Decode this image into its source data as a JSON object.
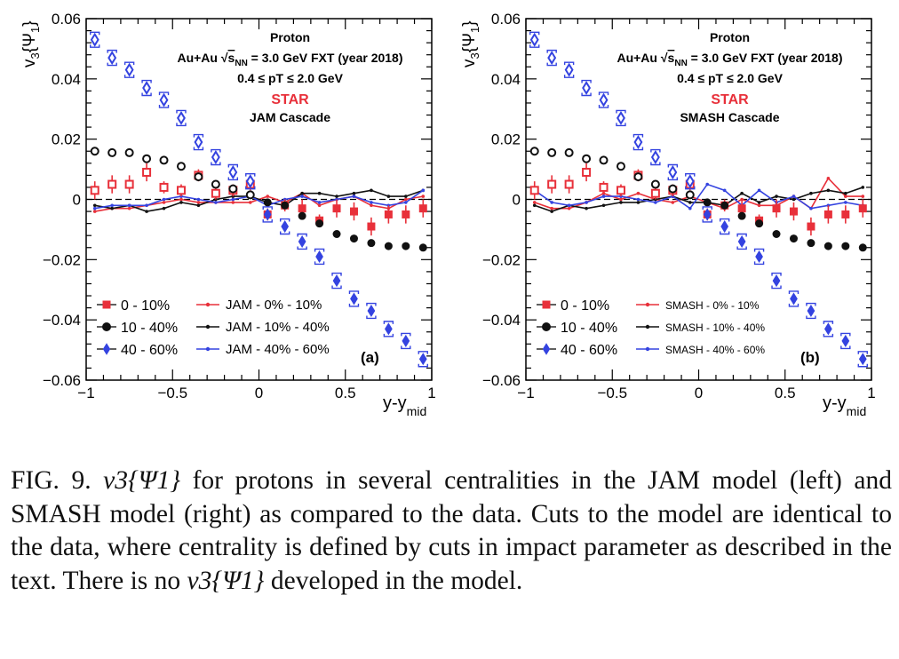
{
  "panels": [
    {
      "chart_data": {
        "type": "scatter",
        "panel_label": "(a)",
        "ylabel": "v3{Ψ1}",
        "xlabel": "y-ymid",
        "xlim": [
          -1,
          1
        ],
        "ylim": [
          -0.06,
          0.06
        ],
        "x_ticks": [
          "−1",
          "−0.5",
          "0",
          "0.5",
          "1"
        ],
        "y_ticks": [
          "−0.06",
          "−0.04",
          "−0.02",
          "0",
          "0.02",
          "0.04",
          "0.06"
        ],
        "annotations": {
          "particle": "Proton",
          "system_prefix": "Au+Au",
          "energy": "= 3.0 GeV FXT (year 2018)",
          "pt_range": "0.4 ≤ pT ≤ 2.0 GeV",
          "experiment": "STAR",
          "model": "JAM Cascade"
        },
        "legend_placement": "bottom",
        "x": [
          -0.95,
          -0.85,
          -0.75,
          -0.65,
          -0.55,
          -0.45,
          -0.35,
          -0.25,
          -0.15,
          -0.05,
          0.05,
          0.15,
          0.25,
          0.35,
          0.45,
          0.55,
          0.65,
          0.75,
          0.85,
          0.95
        ],
        "data_series": [
          {
            "name": "0 - 10%",
            "color": "#e8303a",
            "marker": "square",
            "values": [
              0.003,
              0.005,
              0.005,
              0.009,
              0.004,
              0.003,
              0.008,
              0.002,
              0.003,
              0.005,
              -0.005,
              -0.002,
              -0.003,
              -0.007,
              -0.003,
              -0.004,
              -0.009,
              -0.005,
              -0.005,
              -0.003
            ],
            "errors": [
              0.003,
              0.003,
              0.003,
              0.003,
              0.002,
              0.002,
              0.002,
              0.002,
              0.002,
              0.002,
              0.002,
              0.002,
              0.003,
              0.002,
              0.003,
              0.003,
              0.003,
              0.003,
              0.003,
              0.003
            ]
          },
          {
            "name": "10 - 40%",
            "color": "#111111",
            "marker": "circle",
            "values": [
              0.016,
              0.0155,
              0.0155,
              0.0135,
              0.013,
              0.011,
              0.0075,
              0.005,
              0.0035,
              0.0015,
              -0.001,
              -0.002,
              -0.0055,
              -0.008,
              -0.0115,
              -0.013,
              -0.0145,
              -0.0155,
              -0.0155,
              -0.016
            ],
            "errors": [
              0.0005,
              0.0005,
              0.0005,
              0.0005,
              0.0005,
              0.0005,
              0.0005,
              0.0005,
              0.0005,
              0.0005,
              0.0005,
              0.0005,
              0.0005,
              0.0005,
              0.0005,
              0.0005,
              0.0005,
              0.0005,
              0.0005,
              0.0005
            ]
          },
          {
            "name": "40 - 60%",
            "color": "#3443e0",
            "marker": "diamond",
            "values": [
              0.053,
              0.047,
              0.043,
              0.037,
              0.033,
              0.027,
              0.019,
              0.014,
              0.009,
              0.006,
              -0.005,
              -0.009,
              -0.014,
              -0.019,
              -0.027,
              -0.033,
              -0.037,
              -0.043,
              -0.047,
              -0.053
            ],
            "errors": [
              0.0015,
              0.0015,
              0.0015,
              0.0015,
              0.0015,
              0.0015,
              0.0015,
              0.0015,
              0.0015,
              0.0015,
              0.0015,
              0.0015,
              0.0015,
              0.0015,
              0.0015,
              0.0015,
              0.0015,
              0.0015,
              0.0015,
              0.0015
            ]
          }
        ],
        "model_series": [
          {
            "name": "JAM - 0% - 10%",
            "color": "#e8303a",
            "values": [
              -0.004,
              -0.003,
              -0.003,
              -0.002,
              -0.001,
              0.0,
              -0.001,
              -0.001,
              -0.001,
              -0.001,
              0.001,
              -0.001,
              0.002,
              -0.002,
              0.0,
              0.001,
              -0.002,
              -0.003,
              0.0,
              0.001
            ]
          },
          {
            "name": "JAM - 10% - 40%",
            "color": "#111111",
            "values": [
              -0.002,
              -0.003,
              -0.002,
              -0.004,
              -0.003,
              -0.001,
              -0.002,
              0.0,
              0.001,
              0.001,
              -0.001,
              -0.002,
              0.002,
              0.002,
              0.001,
              0.002,
              0.003,
              0.001,
              0.001,
              0.003
            ]
          },
          {
            "name": "JAM - 40% - 60%",
            "color": "#3443e0",
            "values": [
              -0.003,
              -0.002,
              -0.002,
              -0.002,
              0.0,
              0.001,
              0.0,
              -0.001,
              0.0,
              0.001,
              -0.002,
              0.0,
              0.001,
              -0.001,
              0.0,
              0.001,
              -0.001,
              -0.002,
              -0.001,
              0.003
            ]
          }
        ]
      }
    },
    {
      "chart_data": {
        "type": "scatter",
        "panel_label": "(b)",
        "ylabel": "v3{Ψ1}",
        "xlabel": "y-ymid",
        "xlim": [
          -1,
          1
        ],
        "ylim": [
          -0.06,
          0.06
        ],
        "x_ticks": [
          "−1",
          "−0.5",
          "0",
          "0.5",
          "1"
        ],
        "y_ticks": [
          "−0.06",
          "−0.04",
          "−0.02",
          "0",
          "0.02",
          "0.04",
          "0.06"
        ],
        "annotations": {
          "particle": "Proton",
          "system_prefix": "Au+Au",
          "energy": "= 3.0 GeV FXT (year 2018)",
          "pt_range": "0.4 ≤ pT ≤ 2.0 GeV",
          "experiment": "STAR",
          "model": "SMASH Cascade"
        },
        "legend_placement": "bottom",
        "x": [
          -0.95,
          -0.85,
          -0.75,
          -0.65,
          -0.55,
          -0.45,
          -0.35,
          -0.25,
          -0.15,
          -0.05,
          0.05,
          0.15,
          0.25,
          0.35,
          0.45,
          0.55,
          0.65,
          0.75,
          0.85,
          0.95
        ],
        "data_series": [
          {
            "name": "0 - 10%",
            "color": "#e8303a",
            "marker": "square",
            "values": [
              0.003,
              0.005,
              0.005,
              0.009,
              0.004,
              0.003,
              0.008,
              0.002,
              0.003,
              0.005,
              -0.005,
              -0.002,
              -0.003,
              -0.007,
              -0.003,
              -0.004,
              -0.009,
              -0.005,
              -0.005,
              -0.003
            ],
            "errors": [
              0.003,
              0.003,
              0.003,
              0.003,
              0.002,
              0.002,
              0.002,
              0.002,
              0.002,
              0.002,
              0.002,
              0.002,
              0.003,
              0.002,
              0.003,
              0.003,
              0.003,
              0.003,
              0.003,
              0.003
            ]
          },
          {
            "name": "10 - 40%",
            "color": "#111111",
            "marker": "circle",
            "values": [
              0.016,
              0.0155,
              0.0155,
              0.0135,
              0.013,
              0.011,
              0.0075,
              0.005,
              0.0035,
              0.0015,
              -0.001,
              -0.002,
              -0.0055,
              -0.008,
              -0.0115,
              -0.013,
              -0.0145,
              -0.0155,
              -0.0155,
              -0.016
            ],
            "errors": [
              0.0005,
              0.0005,
              0.0005,
              0.0005,
              0.0005,
              0.0005,
              0.0005,
              0.0005,
              0.0005,
              0.0005,
              0.0005,
              0.0005,
              0.0005,
              0.0005,
              0.0005,
              0.0005,
              0.0005,
              0.0005,
              0.0005,
              0.0005
            ]
          },
          {
            "name": "40 - 60%",
            "color": "#3443e0",
            "marker": "diamond",
            "values": [
              0.053,
              0.047,
              0.043,
              0.037,
              0.033,
              0.027,
              0.019,
              0.014,
              0.009,
              0.006,
              -0.005,
              -0.009,
              -0.014,
              -0.019,
              -0.027,
              -0.033,
              -0.037,
              -0.043,
              -0.047,
              -0.053
            ],
            "errors": [
              0.0015,
              0.0015,
              0.0015,
              0.0015,
              0.0015,
              0.0015,
              0.0015,
              0.0015,
              0.0015,
              0.0015,
              0.0015,
              0.0015,
              0.0015,
              0.0015,
              0.0015,
              0.0015,
              0.0015,
              0.0015,
              0.0015,
              0.0015
            ]
          }
        ],
        "model_series": [
          {
            "name": "SMASH - 0% - 10%",
            "color": "#e8303a",
            "values": [
              -0.001,
              -0.003,
              -0.003,
              -0.001,
              0.002,
              0.0,
              0.002,
              0.0,
              -0.001,
              0.001,
              -0.001,
              -0.003,
              0.0,
              -0.002,
              -0.002,
              0.001,
              -0.003,
              0.007,
              0.001,
              0.001
            ]
          },
          {
            "name": "SMASH - 10% - 40%",
            "color": "#111111",
            "values": [
              -0.002,
              -0.004,
              -0.002,
              -0.003,
              -0.002,
              -0.001,
              -0.001,
              0.0,
              0.001,
              -0.001,
              -0.001,
              -0.002,
              0.002,
              -0.001,
              0.001,
              0.0,
              0.002,
              0.003,
              0.002,
              0.004
            ]
          },
          {
            "name": "SMASH - 40% - 60%",
            "color": "#3443e0",
            "values": [
              0.003,
              -0.001,
              -0.002,
              -0.001,
              0.001,
              0.001,
              0.0,
              -0.001,
              0.001,
              -0.003,
              0.005,
              0.003,
              -0.002,
              0.003,
              -0.001,
              0.001,
              -0.003,
              -0.002,
              -0.001,
              -0.002
            ]
          }
        ]
      }
    }
  ],
  "caption": {
    "label": "FIG. 9.",
    "math": "v3{Ψ1}",
    "part1": " for protons in several centralities in the JAM model (left) and SMASH model (right) as compared to the data.  Cuts to the model are identical to the data, where centrality is defined by cuts in impact parameter as described in the text. There is no ",
    "part2": " developed in the model."
  }
}
